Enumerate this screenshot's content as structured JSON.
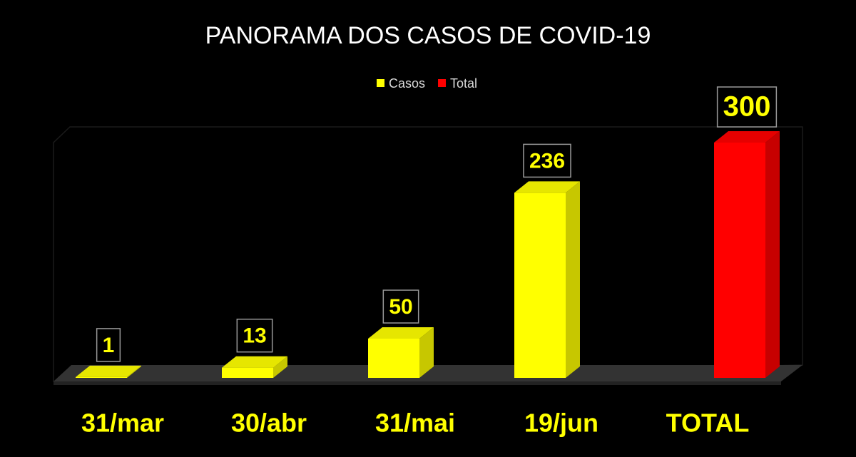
{
  "chart_data": {
    "type": "bar3d",
    "title": "PANORAMA DOS CASOS DE COVID-19",
    "categories": [
      "31/mar",
      "30/abr",
      "31/mai",
      "19/jun",
      "TOTAL"
    ],
    "series": [
      {
        "name": "Casos",
        "color": "#ffff00",
        "values": [
          1,
          13,
          50,
          236,
          null
        ]
      },
      {
        "name": "Total",
        "color": "#ff0000",
        "values": [
          null,
          null,
          null,
          null,
          300
        ]
      }
    ],
    "legend": "top"
  }
}
